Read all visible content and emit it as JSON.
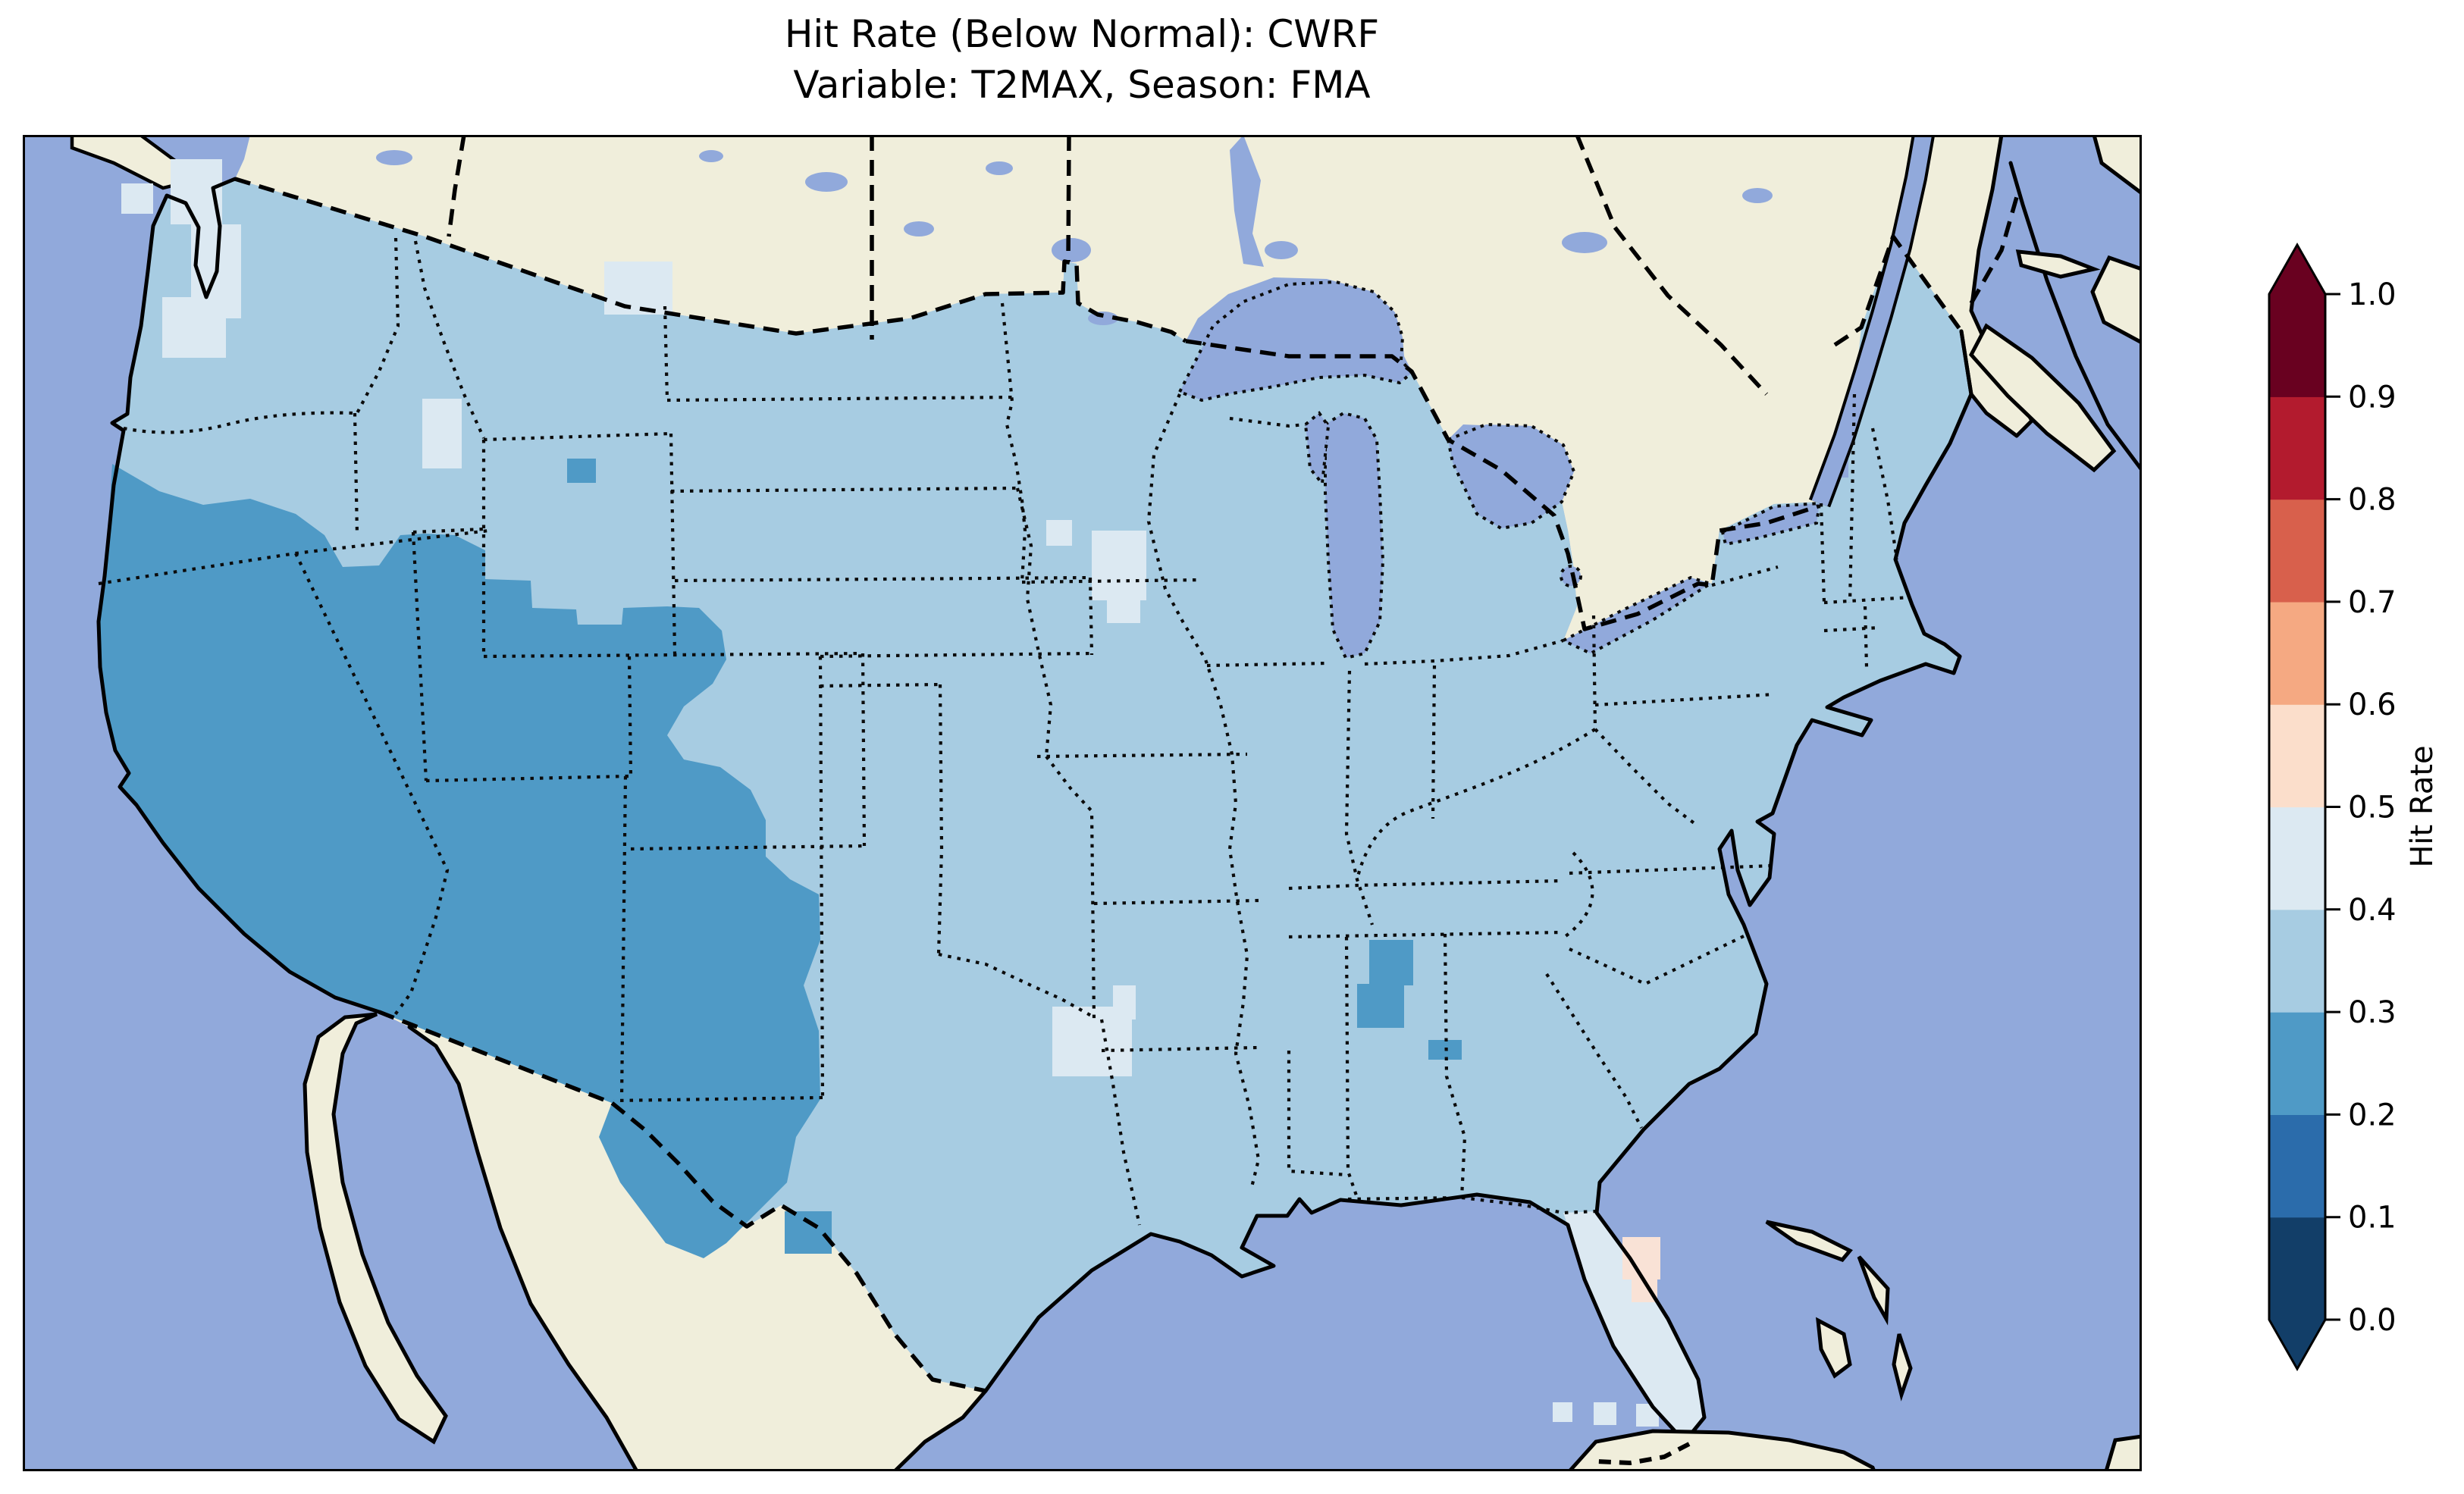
{
  "figure": {
    "title_line1": "Hit Rate (Below Normal): CWRF",
    "title_line2": "Variable: T2MAX, Season: FMA"
  },
  "map": {
    "colors": {
      "ocean": "#91a9db",
      "land_foreign": "#f0eedb",
      "us_base": "#a7cce2",
      "us_dark": "#4f9ac6",
      "us_light": "#dce9f2",
      "us_pink": "#f9e2d6",
      "water_lake": "#91a9db",
      "coastline": "#000000"
    }
  },
  "colorbar": {
    "label": "Hit Rate",
    "ticks": [
      "0.0",
      "0.1",
      "0.2",
      "0.3",
      "0.4",
      "0.5",
      "0.6",
      "0.7",
      "0.8",
      "0.9",
      "1.0"
    ],
    "colors_bottom_to_top": [
      "#123e68",
      "#2b6cab",
      "#4f9ac6",
      "#a7cce2",
      "#dce9f2",
      "#fbdecb",
      "#f5a982",
      "#d8604c",
      "#b31b2e",
      "#690120"
    ],
    "extend_under_color": "#123e68",
    "extend_over_color": "#690120"
  },
  "chart_data": {
    "type": "heatmap",
    "title": "Hit Rate (Below Normal): CWRF",
    "subtitle": "Variable: T2MAX, Season: FMA",
    "metric": "Hit Rate (Below Normal)",
    "model": "CWRF",
    "variable": "T2MAX",
    "season": "FMA",
    "geography": "Contiguous United States (Lambert-style projection, surrounding Canada/Mexico/ocean masked)",
    "colorbar_label": "Hit Rate",
    "colorbar_range": [
      0.0,
      1.0
    ],
    "colorbar_step": 0.1,
    "colorbar_extend": "both",
    "colormap": "RdBu_r discrete (10 bins)",
    "colormap_colors_low_to_high": [
      "#123e68",
      "#2b6cab",
      "#4f9ac6",
      "#a7cce2",
      "#dce9f2",
      "#fbdecb",
      "#f5a982",
      "#d8604c",
      "#b31b2e",
      "#690120"
    ],
    "region_values": [
      {
        "region": "Most of the contiguous US",
        "hit_rate_bin": "0.3-0.4"
      },
      {
        "region": "Southwest: California, Nevada, Utah, Arizona, New Mexico, western Colorado, far-west Texas",
        "hit_rate_bin": "0.2-0.3"
      },
      {
        "region": "Southern Oregon / northern California coastal strip",
        "hit_rate_bin": "0.2-0.3"
      },
      {
        "region": "Small cell in central Montana",
        "hit_rate_bin": "0.2-0.3"
      },
      {
        "region": "Central Alabama / Alabama-Georgia border blob",
        "hit_rate_bin": "0.2-0.3"
      },
      {
        "region": "Rio Grande cells in south Texas",
        "hit_rate_bin": "0.2-0.3"
      },
      {
        "region": "Puget Sound / western Washington",
        "hit_rate_bin": "0.4-0.5"
      },
      {
        "region": "Idaho-Wyoming border patch",
        "hit_rate_bin": "0.4-0.5"
      },
      {
        "region": "Northeast Montana / North Dakota border patch",
        "hit_rate_bin": "0.4-0.5"
      },
      {
        "region": "Southwest Minnesota patch",
        "hit_rate_bin": "0.4-0.5"
      },
      {
        "region": "Single cell in central Nebraska",
        "hit_rate_bin": "0.4-0.5"
      },
      {
        "region": "Oklahoma-Texas Red River patch",
        "hit_rate_bin": "0.4-0.5"
      },
      {
        "region": "Florida peninsula",
        "hit_rate_bin": "0.4-0.5"
      },
      {
        "region": "Southwest Florida cells",
        "hit_rate_bin": "0.5-0.6"
      }
    ],
    "layout": {
      "legend_position": "right vertical colorbar",
      "grid": "off"
    }
  }
}
